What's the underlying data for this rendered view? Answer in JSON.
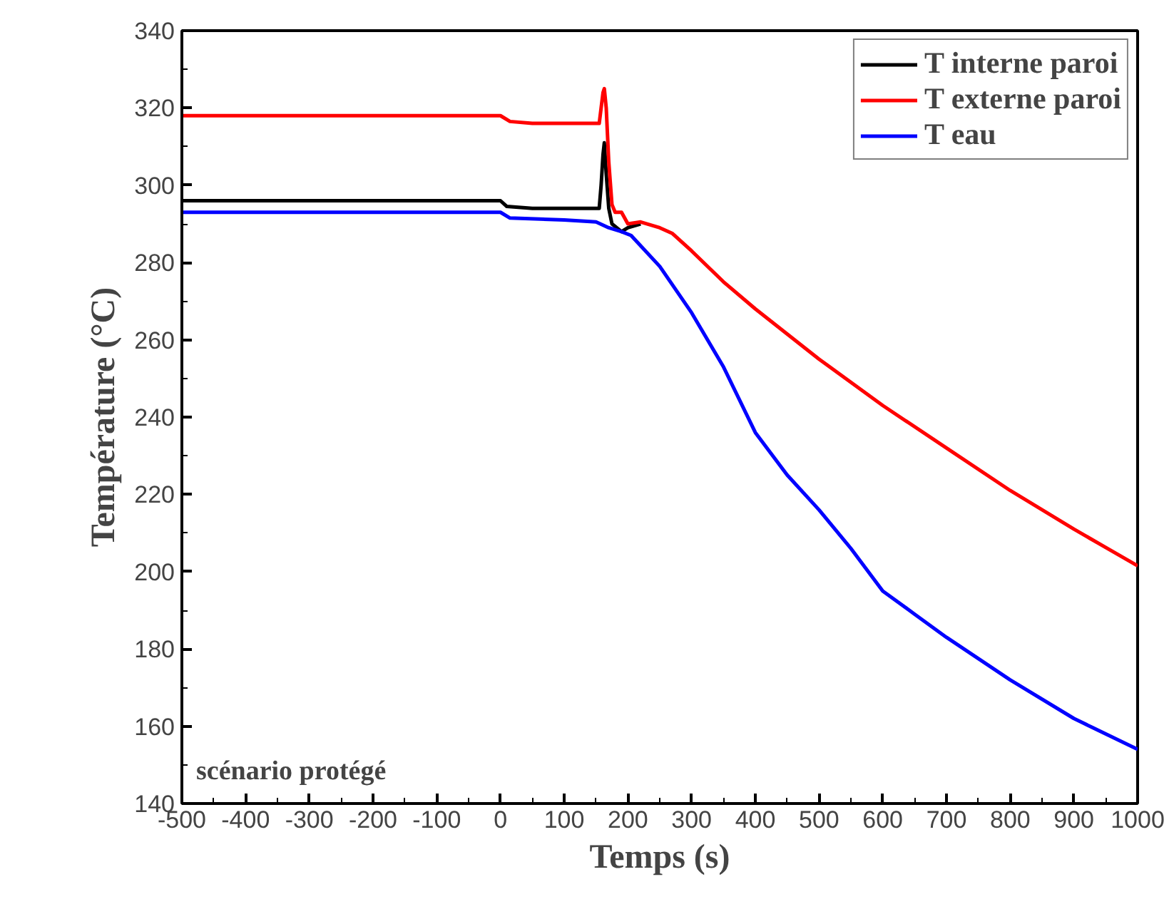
{
  "chart_data": {
    "type": "line",
    "xlabel": "Temps (s)",
    "ylabel": "Température (°C)",
    "xlim": [
      -500,
      1000
    ],
    "xticks": [
      -500,
      -400,
      -300,
      -200,
      -100,
      0,
      100,
      200,
      300,
      400,
      500,
      600,
      700,
      800,
      900,
      1000
    ],
    "ylim": [
      140,
      340
    ],
    "yticks": [
      140,
      160,
      180,
      200,
      220,
      240,
      260,
      280,
      300,
      320,
      340
    ],
    "grid": false,
    "legend": "top right",
    "line_style": "solid",
    "marker": "none",
    "annotations": [
      "scénario protégé"
    ],
    "series": [
      {
        "name": "T interne paroi",
        "color": "#000000",
        "x": [
          -500,
          0,
          10,
          50,
          155,
          158,
          161,
          163,
          166,
          170,
          175,
          190,
          200,
          220
        ],
        "values": [
          296,
          296,
          294.5,
          294,
          294,
          300,
          308,
          311,
          303,
          294,
          290,
          288,
          289,
          290
        ]
      },
      {
        "name": "T externe paroi",
        "color": "#ff0000",
        "x": [
          -500,
          0,
          15,
          50,
          155,
          158,
          161,
          163,
          166,
          170,
          175,
          180,
          190,
          200,
          220,
          250,
          270,
          300,
          350,
          400,
          500,
          600,
          700,
          800,
          900,
          1000
        ],
        "values": [
          318,
          318,
          316.5,
          316,
          316,
          320,
          324,
          325,
          320,
          306,
          295,
          293,
          293,
          290,
          290.5,
          289,
          287.5,
          283,
          275,
          268,
          255,
          243,
          232,
          221,
          211,
          201.5
        ]
      },
      {
        "name": "T eau",
        "color": "#0000ff",
        "x": [
          -500,
          0,
          15,
          100,
          150,
          170,
          190,
          205,
          250,
          300,
          350,
          400,
          450,
          500,
          550,
          600,
          650,
          700,
          800,
          900,
          1000
        ],
        "values": [
          293,
          293,
          291.5,
          291,
          290.5,
          289,
          288,
          287,
          279,
          267,
          253,
          236,
          225,
          216,
          206,
          195,
          189,
          183,
          172,
          162,
          154
        ]
      }
    ]
  }
}
